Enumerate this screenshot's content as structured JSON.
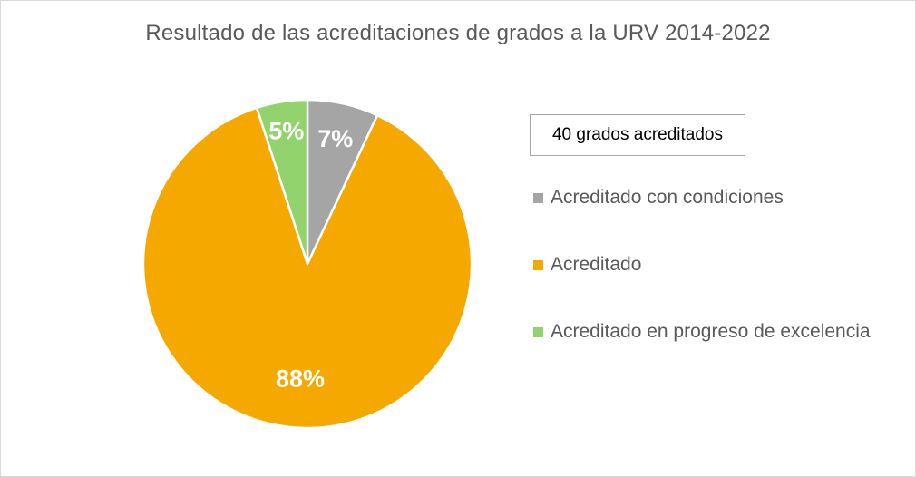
{
  "chart_data": {
    "type": "pie",
    "title": "Resultado de las acreditaciones de grados a la URV 2014-2022",
    "annotation": "40 grados acreditados",
    "legend_position": "right",
    "slices": [
      {
        "name": "Acreditado con condiciones",
        "value": 7,
        "label": "7%",
        "color": "#a5a5a5"
      },
      {
        "name": "Acreditado",
        "value": 88,
        "label": "88%",
        "color": "#f5a800"
      },
      {
        "name": "Acreditado en progreso de excelencia",
        "value": 5,
        "label": "5%",
        "color": "#92d36e"
      }
    ]
  }
}
